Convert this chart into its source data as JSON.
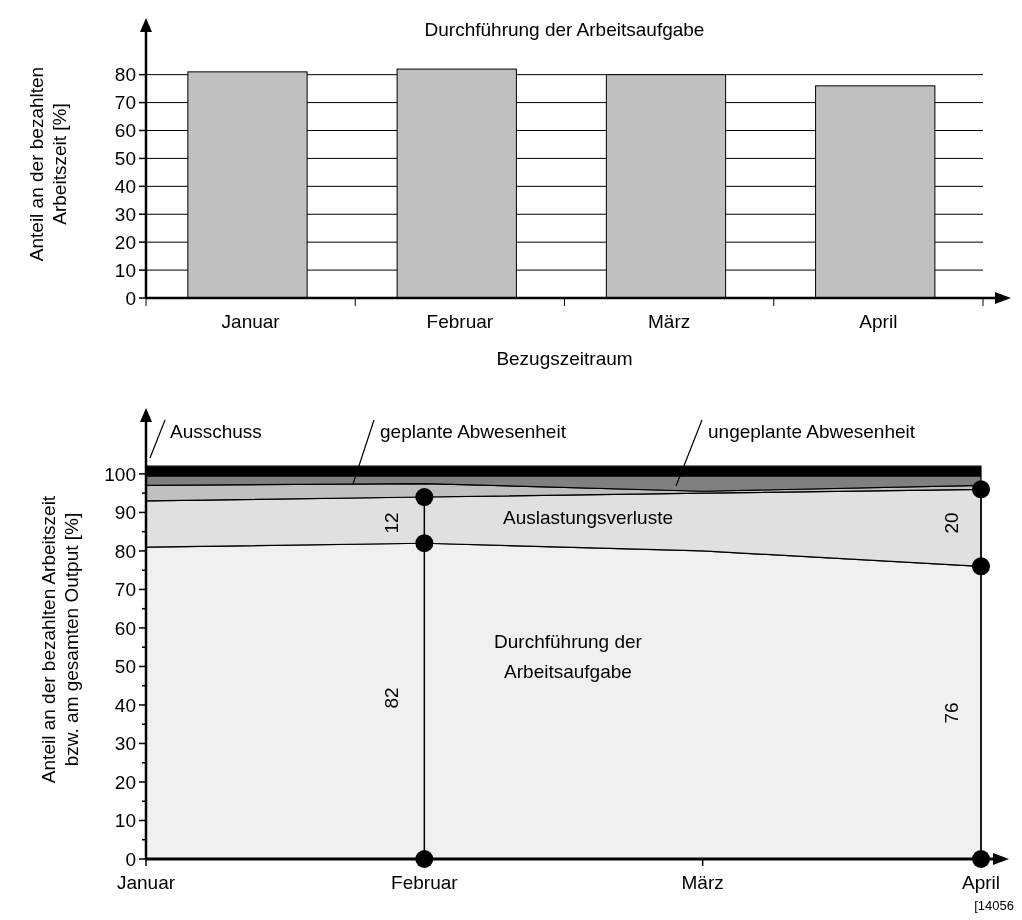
{
  "chart_data": [
    {
      "type": "bar",
      "title": "Durchführung der Arbeitsaufgabe",
      "xlabel": "Bezugszeitraum",
      "ylabel": "Anteil an der bezahlten Arbeitszeit [%]",
      "categories": [
        "Januar",
        "Februar",
        "März",
        "April"
      ],
      "values": [
        81,
        82,
        80,
        76
      ],
      "color": "#c0c0c0",
      "ylim": [
        0,
        96
      ],
      "yticks": [
        0,
        10,
        20,
        30,
        40,
        50,
        60,
        70,
        80
      ],
      "grid": "y"
    },
    {
      "type": "area",
      "stacked": true,
      "ylabel": "Anteil an der bezahlten Arbeitszeit bzw. am gesamten Output [%]",
      "categories": [
        "Januar",
        "Februar",
        "März",
        "April"
      ],
      "ylim": [
        0,
        114
      ],
      "yticks": [
        0,
        {
          "value": 5,
          "label": null
        },
        10,
        {
          "value": 15,
          "label": null
        },
        20,
        {
          "value": 25,
          "label": null
        },
        30,
        {
          "value": 35,
          "label": null
        },
        40,
        {
          "value": 45,
          "label": null
        },
        50,
        {
          "value": 55,
          "label": null
        },
        60,
        {
          "value": 65,
          "label": null
        },
        70,
        {
          "value": 75,
          "label": null
        },
        80,
        {
          "value": 85,
          "label": null
        },
        90,
        {
          "value": 95,
          "label": null
        },
        100
      ],
      "series": [
        {
          "name": "Durchführung der Arbeitsaufgabe",
          "color": "#f0f0f0",
          "values": [
            81,
            82,
            80,
            76
          ]
        },
        {
          "name": "Auslastungsverluste",
          "color": "#e0e0e0",
          "values": [
            12,
            12,
            15,
            20
          ]
        },
        {
          "name": "geplante Abwesenheit",
          "color": "#c0c0c0",
          "values": [
            4,
            3.5,
            0.5,
            1
          ]
        },
        {
          "name": "ungeplante Abwesenheit",
          "color": "#808080",
          "values": [
            2.5,
            2,
            4,
            2.5
          ]
        },
        {
          "name": "Ausschuss",
          "color": "#000000",
          "values": [
            2.5,
            2.5,
            2.5,
            2.5
          ]
        },
        {
          "type": "scatter",
          "color": "#000000",
          "marker": "circle",
          "x": [
            "Februar",
            "Februar",
            "Februar",
            "April",
            "April",
            "April"
          ],
          "values": [
            0,
            82,
            94,
            0,
            76,
            96
          ]
        }
      ],
      "annotations": [
        "82",
        "12",
        "76",
        "20",
        "[14056"
      ]
    }
  ]
}
